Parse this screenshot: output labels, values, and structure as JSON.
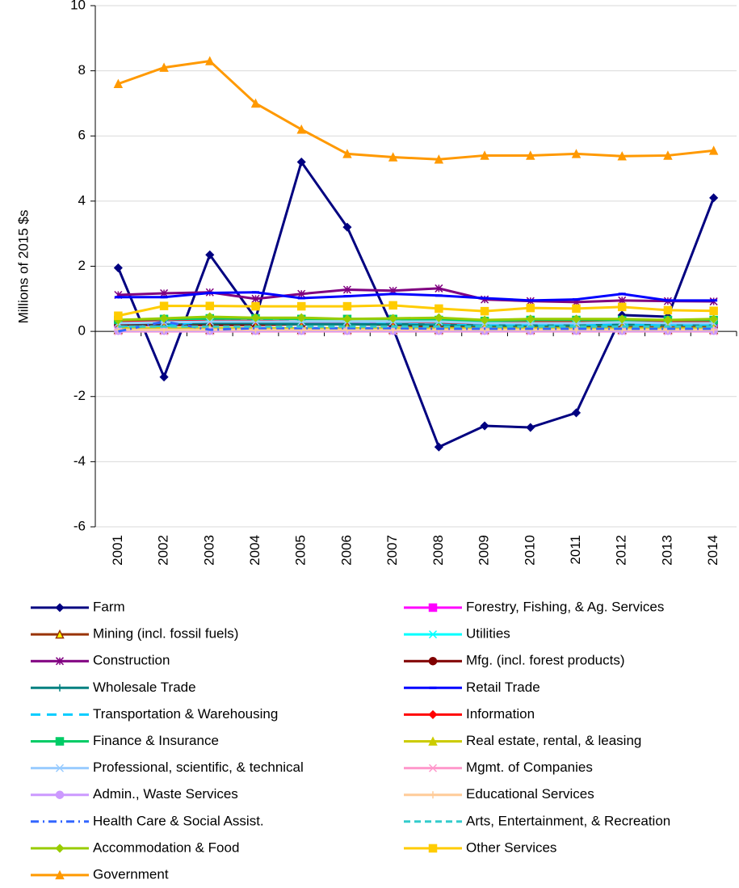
{
  "chart_data": {
    "type": "line",
    "y_label": "Millions of 2015 $s",
    "categories": [
      "2001",
      "2002",
      "2003",
      "2004",
      "2005",
      "2006",
      "2007",
      "2008",
      "2009",
      "2010",
      "2011",
      "2012",
      "2013",
      "2014"
    ],
    "ylim": [
      -6,
      10
    ],
    "yticks": [
      -6,
      -4,
      -2,
      0,
      2,
      4,
      6,
      8,
      10
    ],
    "grid": true,
    "legend": "bottom",
    "series": [
      {
        "name": "Farm",
        "color": "#000080",
        "marker": "diamond",
        "values": [
          1.95,
          -1.4,
          2.35,
          0.4,
          5.2,
          3.2,
          0.1,
          -3.55,
          -2.9,
          -2.95,
          -2.5,
          0.5,
          0.45,
          4.1
        ]
      },
      {
        "name": "Forestry, Fishing, & Ag. Services",
        "color": "#FF00FF",
        "marker": "square",
        "values": [
          0.25,
          0.3,
          0.3,
          0.3,
          0.28,
          0.28,
          0.25,
          0.22,
          0.2,
          0.22,
          0.22,
          0.25,
          0.22,
          0.25
        ]
      },
      {
        "name": "Mining (incl. fossil fuels)",
        "color": "#993300",
        "marker": "triangle",
        "values": [
          0.05,
          0.05,
          0.05,
          0.05,
          0.05,
          0.05,
          0.05,
          0.05,
          0.05,
          0.05,
          0.05,
          0.05,
          0.05,
          0.05
        ]
      },
      {
        "name": "Utilities",
        "color": "#00FFFF",
        "marker": "x",
        "values": [
          0.3,
          0.3,
          0.35,
          0.3,
          0.3,
          0.3,
          0.3,
          0.25,
          0.25,
          0.25,
          0.25,
          0.25,
          0.25,
          0.25
        ]
      },
      {
        "name": "Construction",
        "color": "#800080",
        "marker": "star",
        "values": [
          1.12,
          1.17,
          1.2,
          1.0,
          1.15,
          1.28,
          1.25,
          1.32,
          0.98,
          0.93,
          0.9,
          0.95,
          0.93,
          0.92
        ]
      },
      {
        "name": "Mfg. (incl. forest products)",
        "color": "#800000",
        "marker": "circle",
        "values": [
          0.2,
          0.2,
          0.2,
          0.2,
          0.22,
          0.22,
          0.2,
          0.15,
          0.12,
          0.12,
          0.12,
          0.12,
          0.12,
          0.12
        ]
      },
      {
        "name": "Wholesale Trade",
        "color": "#008080",
        "marker": "plus",
        "values": [
          0.25,
          0.25,
          0.25,
          0.25,
          0.22,
          0.22,
          0.22,
          0.2,
          0.18,
          0.18,
          0.18,
          0.2,
          0.2,
          0.2
        ]
      },
      {
        "name": "Retail Trade",
        "color": "#0000FF",
        "marker": "dash",
        "values": [
          1.05,
          1.05,
          1.18,
          1.2,
          1.02,
          1.08,
          1.15,
          1.1,
          1.02,
          0.95,
          0.98,
          1.15,
          0.95,
          0.95
        ]
      },
      {
        "name": "Transportation & Warehousing",
        "color": "#00CCFF",
        "marker": "none",
        "dash": "12 8",
        "values": [
          0.15,
          0.15,
          0.35,
          0.35,
          0.3,
          0.3,
          0.28,
          0.25,
          0.22,
          0.22,
          0.22,
          0.22,
          0.2,
          0.22
        ]
      },
      {
        "name": "Information",
        "color": "#FF0000",
        "marker": "diamond",
        "values": [
          0.3,
          0.3,
          0.32,
          0.32,
          0.3,
          0.3,
          0.3,
          0.28,
          0.25,
          0.28,
          0.28,
          0.28,
          0.28,
          0.3
        ]
      },
      {
        "name": "Finance & Insurance",
        "color": "#00CC66",
        "marker": "square",
        "values": [
          0.35,
          0.38,
          0.4,
          0.4,
          0.38,
          0.38,
          0.38,
          0.35,
          0.32,
          0.35,
          0.35,
          0.35,
          0.35,
          0.35
        ]
      },
      {
        "name": "Real estate, rental, & leasing",
        "color": "#CCCC00",
        "marker": "triangle",
        "values": [
          0.1,
          0.1,
          0.1,
          0.1,
          0.1,
          0.1,
          0.1,
          0.1,
          0.1,
          0.1,
          0.1,
          0.1,
          0.1,
          0.1
        ]
      },
      {
        "name": "Professional, scientific, & technical",
        "color": "#99CCFF",
        "marker": "x",
        "values": [
          0.25,
          0.28,
          0.3,
          0.3,
          0.3,
          0.3,
          0.3,
          0.3,
          0.25,
          0.25,
          0.25,
          0.28,
          0.25,
          0.25
        ]
      },
      {
        "name": "Mgmt. of Companies",
        "color": "#FF99CC",
        "marker": "x",
        "values": [
          0,
          0,
          0,
          0,
          0,
          0,
          0,
          0,
          0,
          0,
          0,
          0,
          0,
          0
        ]
      },
      {
        "name": "Admin., Waste Services",
        "color": "#CC99FF",
        "marker": "circle",
        "values": [
          0.02,
          0.02,
          0.02,
          0.02,
          0.02,
          0.02,
          0.02,
          0.02,
          0.02,
          0.02,
          0.02,
          0.02,
          0.02,
          0.02
        ]
      },
      {
        "name": "Educational Services",
        "color": "#FFCC99",
        "marker": "plus",
        "values": [
          0.05,
          0.05,
          0.05,
          0.05,
          0.05,
          0.05,
          0.05,
          0.05,
          0.05,
          0.05,
          0.05,
          0.05,
          0.05,
          0.05
        ]
      },
      {
        "name": "Health Care & Social Assist.",
        "color": "#3366FF",
        "marker": "none",
        "dash": "10 5 2 5",
        "values": [
          0,
          0.3,
          0.05,
          0.1,
          0.1,
          0.1,
          0.1,
          0.08,
          0.08,
          0.08,
          0.08,
          0.08,
          0.08,
          0.08
        ]
      },
      {
        "name": "Arts, Entertainment, & Recreation",
        "color": "#33CCCC",
        "marker": "none",
        "dash": "8 5",
        "values": [
          0.15,
          0.15,
          0.15,
          0.15,
          0.15,
          0.15,
          0.15,
          0.15,
          0.15,
          0.15,
          0.15,
          0.15,
          0.15,
          0.15
        ]
      },
      {
        "name": "Accommodation & Food",
        "color": "#99CC00",
        "marker": "diamond",
        "values": [
          0.35,
          0.4,
          0.45,
          0.42,
          0.42,
          0.38,
          0.4,
          0.42,
          0.35,
          0.38,
          0.38,
          0.38,
          0.35,
          0.38
        ]
      },
      {
        "name": "Other Services",
        "color": "#FFCC00",
        "marker": "square",
        "values": [
          0.48,
          0.78,
          0.78,
          0.77,
          0.77,
          0.77,
          0.8,
          0.7,
          0.62,
          0.72,
          0.7,
          0.75,
          0.65,
          0.63
        ]
      },
      {
        "name": "Government",
        "color": "#FF9900",
        "marker": "triangle",
        "values": [
          7.6,
          8.1,
          8.3,
          7.0,
          6.2,
          5.45,
          5.35,
          5.28,
          5.4,
          5.4,
          5.45,
          5.38,
          5.4,
          5.55
        ]
      }
    ]
  }
}
